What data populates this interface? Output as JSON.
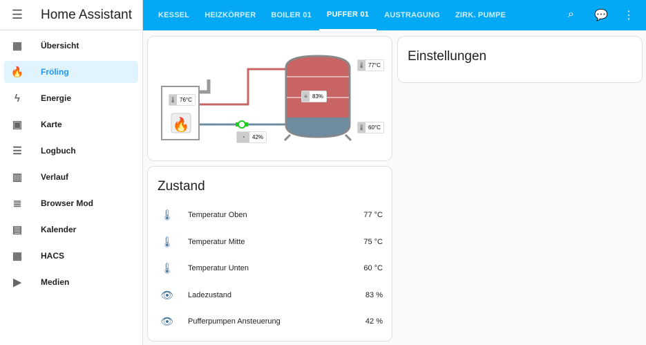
{
  "app": {
    "title": "Home Assistant",
    "menu_icon": "menu-open-icon"
  },
  "sidebar": {
    "items": [
      {
        "label": "Übersicht",
        "icon": "view-dashboard-icon",
        "glyph": "▦"
      },
      {
        "label": "Fröling",
        "icon": "fire-icon",
        "glyph": "🔥",
        "active": true
      },
      {
        "label": "Energie",
        "icon": "lightning-bolt-icon",
        "glyph": "ϟ"
      },
      {
        "label": "Karte",
        "icon": "map-account-icon",
        "glyph": "▣"
      },
      {
        "label": "Logbuch",
        "icon": "format-list-icon",
        "glyph": "☰"
      },
      {
        "label": "Verlauf",
        "icon": "chart-box-icon",
        "glyph": "▥"
      },
      {
        "label": "Browser Mod",
        "icon": "server-icon",
        "glyph": "≣"
      },
      {
        "label": "Kalender",
        "icon": "calendar-icon",
        "glyph": "▤"
      },
      {
        "label": "HACS",
        "icon": "hacs-icon",
        "glyph": "▦"
      },
      {
        "label": "Medien",
        "icon": "play-box-icon",
        "glyph": "▶"
      }
    ]
  },
  "tabs": [
    "KESSEL",
    "HEIZKÖRPER",
    "BOILER 01",
    "PUFFER 01",
    "AUSTRAGUNG",
    "ZIRK. PUMPE"
  ],
  "active_tab": "PUFFER 01",
  "toolbar": {
    "icons": [
      "search-icon",
      "assist-icon",
      "dots-vertical-icon"
    ]
  },
  "diagram": {
    "boiler_temp": "76°C",
    "tank_top": "77°C",
    "tank_bottom": "60°C",
    "charge": "83%",
    "pump": "42%",
    "colors": {
      "hot": "#c86464",
      "cold": "#6e8ca0",
      "pump": "#22cc22"
    }
  },
  "zustand": {
    "title": "Zustand",
    "rows": [
      {
        "name": "Temperatur Oben",
        "value": "77 °C",
        "icon": "thermometer-icon",
        "glyph": "🌡"
      },
      {
        "name": "Temperatur Mitte",
        "value": "75 °C",
        "icon": "thermometer-icon",
        "glyph": "🌡"
      },
      {
        "name": "Temperatur Unten",
        "value": "60 °C",
        "icon": "thermometer-icon",
        "glyph": "🌡"
      },
      {
        "name": "Ladezustand",
        "value": "83 %",
        "icon": "eye-icon",
        "glyph": "👁"
      },
      {
        "name": "Pufferpumpen Ansteuerung",
        "value": "42 %",
        "icon": "eye-icon",
        "glyph": "👁"
      }
    ]
  },
  "einstellungen": {
    "title": "Einstellungen"
  }
}
